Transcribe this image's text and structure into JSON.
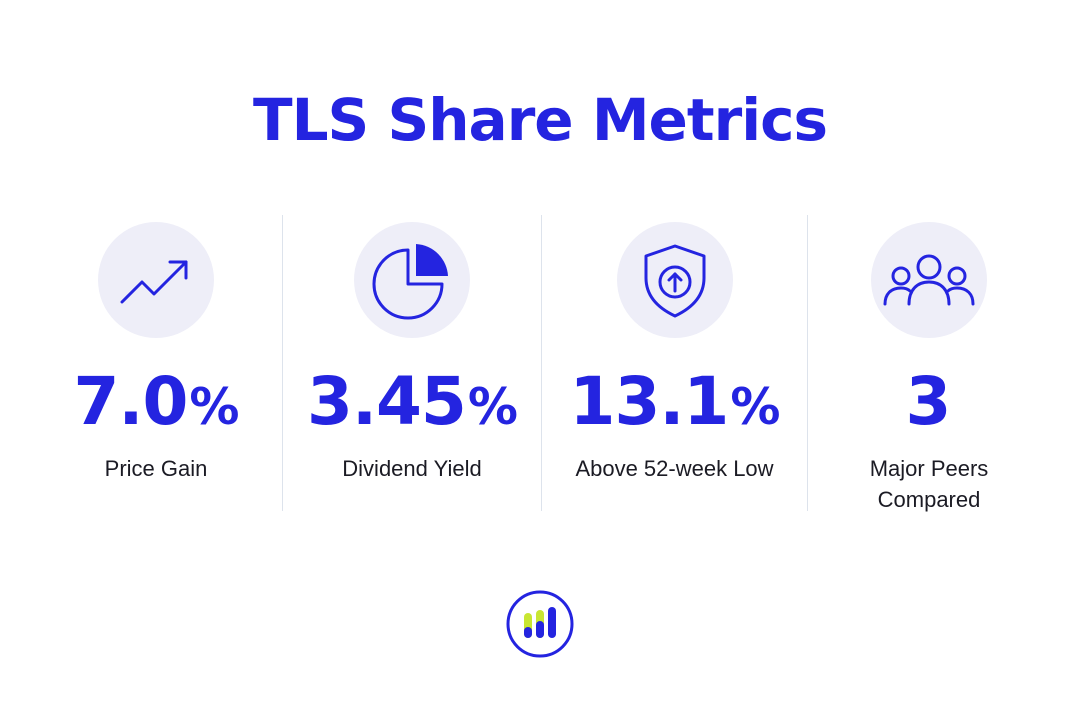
{
  "title": "TLS Share Metrics",
  "colors": {
    "accent": "#2424e0",
    "icon_bg": "#eeeef8",
    "divider": "#dde3ec",
    "logo_bar": "#c8e632"
  },
  "metrics": [
    {
      "icon": "trend-up-icon",
      "value": "7.0",
      "unit": "%",
      "label": "Price Gain"
    },
    {
      "icon": "pie-chart-icon",
      "value": "3.45",
      "unit": "%",
      "label": "Dividend Yield"
    },
    {
      "icon": "shield-arrow-up-icon",
      "value": "13.1",
      "unit": "%",
      "label": "Above 52-week Low"
    },
    {
      "icon": "people-group-icon",
      "value": "3",
      "unit": "",
      "label": "Major Peers Compared"
    }
  ],
  "logo": {
    "icon": "bar-chart-logo-icon"
  }
}
